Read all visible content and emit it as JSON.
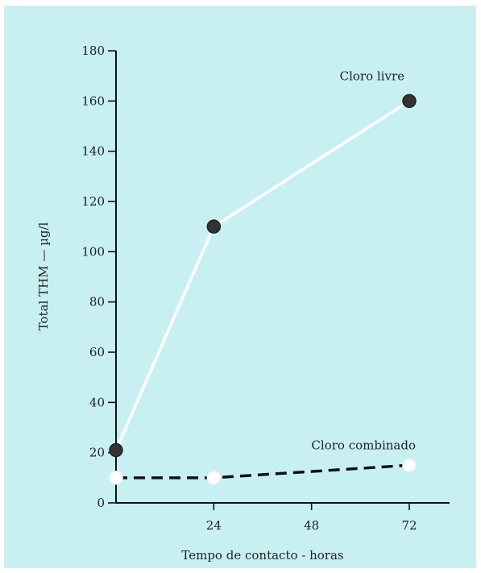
{
  "chart_data": {
    "type": "line",
    "title": "",
    "xlabel": "Tempo de contacto - horas",
    "ylabel": "Total THM — µg/l",
    "xlim": [
      0,
      72
    ],
    "ylim": [
      0,
      180
    ],
    "x_ticks": [
      24,
      48,
      72
    ],
    "y_ticks": [
      0,
      20,
      40,
      60,
      80,
      100,
      120,
      140,
      160,
      180
    ],
    "grid": false,
    "legend": "none",
    "series": [
      {
        "name": "Cloro livre",
        "x": [
          0,
          24,
          72
        ],
        "y": [
          21,
          110,
          160
        ],
        "line_style": "solid",
        "line_color": "#ffffff",
        "marker_color": "#333333"
      },
      {
        "name": "Cloro combinado",
        "x": [
          0,
          24,
          72
        ],
        "y": [
          10,
          10,
          15
        ],
        "line_style": "dashed",
        "line_color": "#111111",
        "marker_color": "#ffffff"
      }
    ]
  }
}
